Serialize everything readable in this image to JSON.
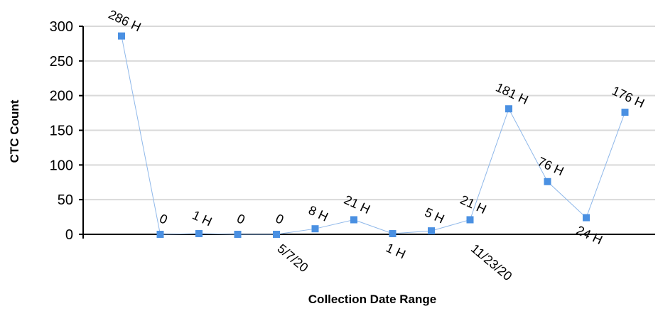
{
  "chart_data": {
    "type": "line",
    "ylabel": "CTC Count",
    "xlabel": "Collection Date Range",
    "ylim": [
      0,
      300
    ],
    "yticks": [
      0,
      50,
      100,
      150,
      200,
      250,
      300
    ],
    "grid": true,
    "legend": "none",
    "x_tick_labels": [
      {
        "index": 4,
        "label": "5/7/20"
      },
      {
        "index": 9,
        "label": "11/23/20"
      }
    ],
    "series": [
      {
        "color": "#4a90e2",
        "values": [
          286,
          0,
          1,
          0,
          0,
          8,
          21,
          1,
          5,
          21,
          181,
          76,
          24,
          176
        ],
        "labels": [
          "286 H",
          "0",
          "1 H",
          "0",
          "0",
          "8 H",
          "21 H",
          "1 H",
          "5 H",
          "21 H",
          "181 H",
          "76 H",
          "24 H",
          "176 H"
        ]
      }
    ]
  }
}
